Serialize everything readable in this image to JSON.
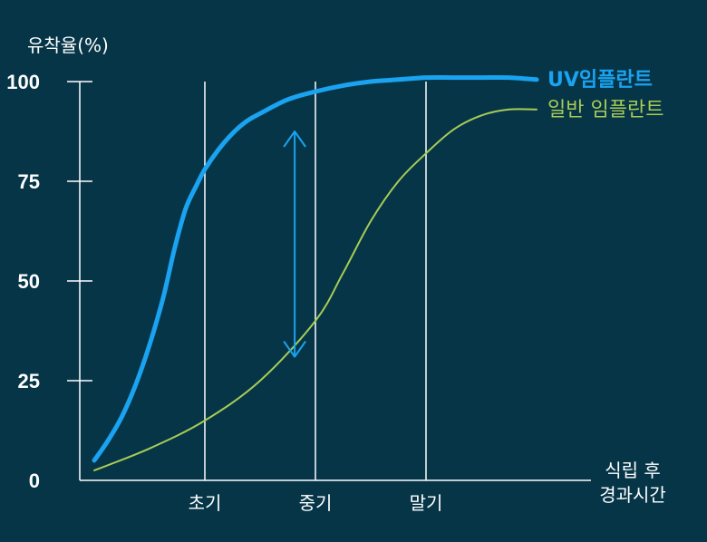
{
  "chart_data": {
    "type": "line",
    "ylabel": "유착율(%)",
    "xlabel_line1": "식립 후",
    "xlabel_line2": "경과시간",
    "ylim": [
      0,
      100
    ],
    "y_ticks": [
      "0",
      "25",
      "50",
      "75",
      "100"
    ],
    "categories": [
      "초기",
      "중기",
      "말기"
    ],
    "grid": "vertical lines at categories",
    "legend": "top-right, labels at line ends",
    "series": [
      {
        "name": "UV임플란트",
        "color": "#1aa3f0",
        "x": [
          0.0,
          0.5,
          1.0,
          1.5,
          2.0,
          2.5,
          2.9,
          3.3,
          3.7,
          4.0,
          4.5,
          5.0,
          5.5,
          6.0,
          7.0,
          8.0,
          9.0,
          10.0,
          11.0,
          12.0,
          13.0,
          14.0,
          15.0,
          16.0
        ],
        "y": [
          5,
          10,
          16,
          24,
          34,
          46,
          58,
          68,
          74,
          78,
          83,
          87,
          90,
          92,
          95.5,
          97.5,
          99,
          100,
          100.5,
          101,
          101,
          101,
          101,
          100.5
        ]
      },
      {
        "name": "일반 임플란트",
        "color": "#a8cc55",
        "x": [
          0.0,
          2.0,
          4.0,
          6.0,
          8.0,
          9.0,
          10.0,
          11.0,
          12.0,
          13.0,
          14.0,
          15.0,
          16.0
        ],
        "y": [
          2.5,
          8,
          15,
          25,
          40,
          52,
          65,
          75,
          82,
          88,
          91.5,
          93,
          93
        ]
      }
    ],
    "annotation": "double-headed arrow between UV임플란트 and 일반 임플란트 around x=7.5"
  }
}
